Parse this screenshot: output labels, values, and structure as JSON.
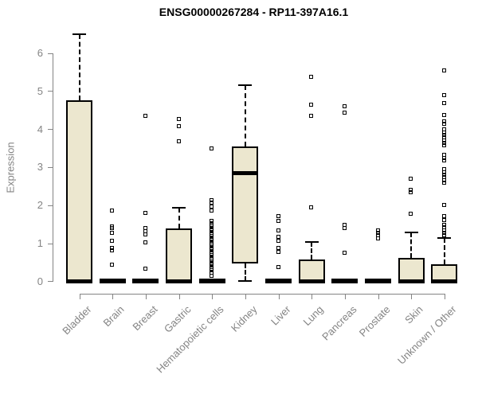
{
  "chart_data": {
    "type": "boxplot",
    "title": "ENSG00000267284 - RP11-397A16.1",
    "ylabel": "Expression",
    "xlabel": "",
    "ylim": [
      0,
      6.6
    ],
    "yticks": [
      0,
      1,
      2,
      3,
      4,
      5,
      6
    ],
    "grid": false,
    "legend": "none",
    "categories": [
      "Bladder",
      "Brain",
      "Breast",
      "Gastric",
      "Hematopoietic cells",
      "Kidney",
      "Liver",
      "Lung",
      "Pancreas",
      "Prostate",
      "Skin",
      "Unknown / Other"
    ],
    "series": [
      {
        "name": "Bladder",
        "q1": 0,
        "median": 0,
        "q3": 4.76,
        "whisker_low": 0,
        "whisker_high": 6.5,
        "outliers": []
      },
      {
        "name": "Brain",
        "q1": 0,
        "median": 0,
        "q3": 0,
        "whisker_low": 0,
        "whisker_high": 0,
        "outliers": [
          1.85,
          1.44,
          1.39,
          1.27,
          1.05,
          0.87,
          0.8,
          0.42
        ]
      },
      {
        "name": "Breast",
        "q1": 0,
        "median": 0,
        "q3": 0,
        "whisker_low": 0,
        "whisker_high": 0,
        "outliers": [
          4.33,
          1.79,
          1.39,
          1.3,
          1.23,
          1.01,
          0.31
        ]
      },
      {
        "name": "Gastric",
        "q1": 0,
        "median": 0,
        "q3": 1.38,
        "whisker_low": 0,
        "whisker_high": 1.94,
        "outliers": [
          4.26,
          4.06,
          3.66
        ]
      },
      {
        "name": "Hematopoietic cells",
        "q1": 0,
        "median": 0,
        "q3": 0,
        "whisker_low": 0,
        "whisker_high": 0,
        "outliers": [
          3.48,
          2.13,
          2.05,
          1.95,
          1.85,
          1.57,
          1.52,
          1.47,
          1.42,
          1.37,
          1.32,
          1.27,
          1.22,
          1.17,
          1.12,
          1.07,
          1.02,
          0.97,
          0.92,
          0.87,
          0.82,
          0.77,
          0.72,
          0.67,
          0.62,
          0.57,
          0.52,
          0.47,
          0.42,
          0.37,
          0.32,
          0.27,
          0.22,
          0.14
        ]
      },
      {
        "name": "Kidney",
        "q1": 0.47,
        "median": 2.84,
        "q3": 3.54,
        "whisker_low": 0,
        "whisker_high": 5.15,
        "outliers": []
      },
      {
        "name": "Liver",
        "q1": 0,
        "median": 0,
        "q3": 0,
        "whisker_low": 0,
        "whisker_high": 0,
        "outliers": [
          1.71,
          1.57,
          1.33,
          1.15,
          1.05,
          0.87,
          0.77,
          0.37
        ]
      },
      {
        "name": "Lung",
        "q1": 0,
        "median": 0,
        "q3": 0.58,
        "whisker_low": 0,
        "whisker_high": 1.03,
        "outliers": [
          5.37,
          4.63,
          4.34,
          1.94
        ]
      },
      {
        "name": "Pancreas",
        "q1": 0,
        "median": 0,
        "q3": 0,
        "whisker_low": 0,
        "whisker_high": 0,
        "outliers": [
          4.6,
          4.43,
          1.48,
          1.39,
          0.73
        ]
      },
      {
        "name": "Prostate",
        "q1": 0,
        "median": 0,
        "q3": 0,
        "whisker_low": 0,
        "whisker_high": 0,
        "outliers": [
          1.33,
          1.26,
          1.19,
          1.12
        ]
      },
      {
        "name": "Skin",
        "q1": 0,
        "median": 0,
        "q3": 0.61,
        "whisker_low": 0,
        "whisker_high": 1.29,
        "outliers": [
          2.69,
          2.39,
          2.32,
          1.76
        ]
      },
      {
        "name": "Unknown / Other",
        "q1": 0,
        "median": 0,
        "q3": 0.44,
        "whisker_low": 0,
        "whisker_high": 1.13,
        "outliers": [
          5.53,
          4.88,
          4.67,
          4.36,
          4.19,
          4.12,
          3.98,
          3.91,
          3.84,
          3.77,
          3.7,
          3.63,
          3.56,
          3.31,
          3.24,
          3.17,
          2.93,
          2.86,
          2.79,
          2.72,
          2.65,
          2.58,
          1.99,
          1.71,
          1.6,
          1.47,
          1.4,
          1.33,
          1.26,
          1.19
        ]
      }
    ],
    "colors": {
      "box_fill": "#ece7cf",
      "box_border": "#000000",
      "median": "#000000",
      "whisker": "#000000",
      "outlier": "#000000",
      "axis": "#848484",
      "tick_label": "#848484",
      "title": "#000000",
      "background": "#ffffff"
    }
  }
}
